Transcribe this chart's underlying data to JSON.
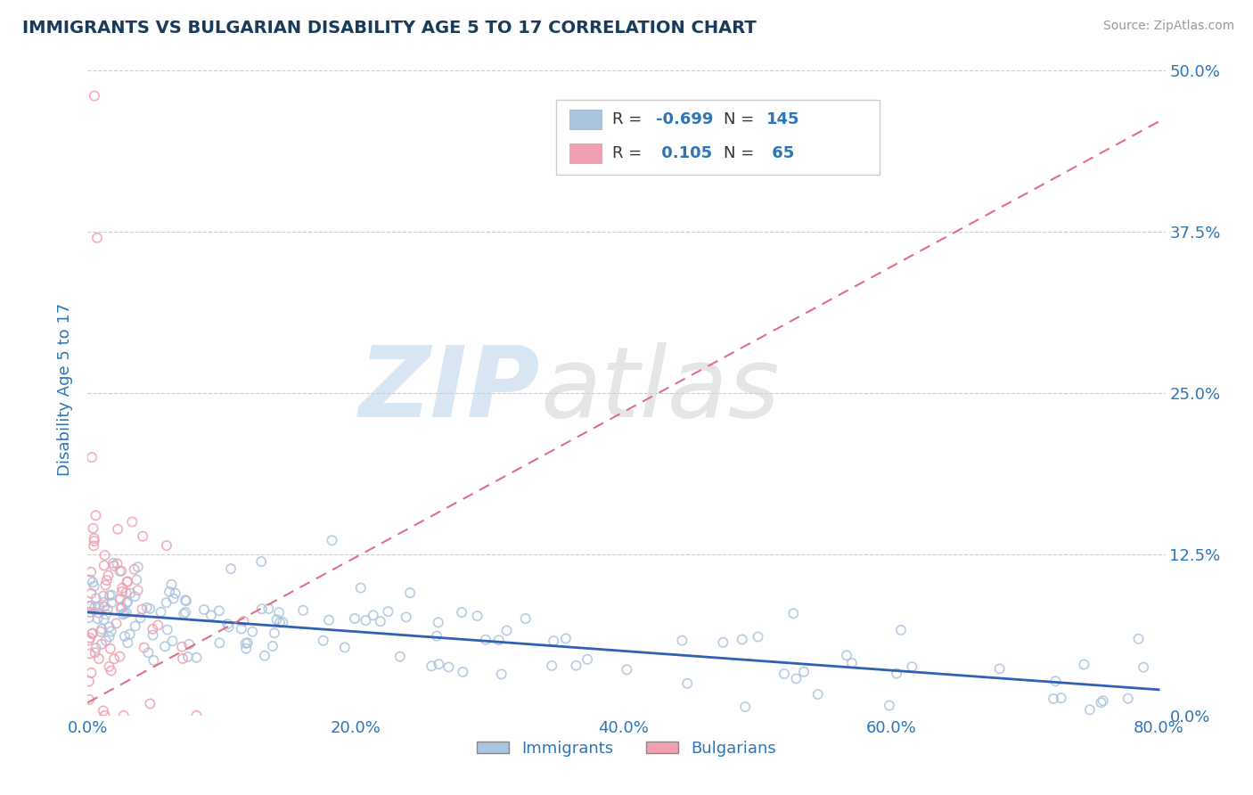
{
  "title": "IMMIGRANTS VS BULGARIAN DISABILITY AGE 5 TO 17 CORRELATION CHART",
  "source_text": "Source: ZipAtlas.com",
  "ylabel": "Disability Age 5 to 17",
  "legend_label1": "Immigrants",
  "legend_label2": "Bulgarians",
  "R1": -0.699,
  "N1": 145,
  "R2": 0.105,
  "N2": 65,
  "xlim": [
    0.0,
    0.8
  ],
  "ylim": [
    0.0,
    0.5
  ],
  "yticks": [
    0.0,
    0.125,
    0.25,
    0.375,
    0.5
  ],
  "ytick_labels": [
    "0.0%",
    "12.5%",
    "25.0%",
    "37.5%",
    "50.0%"
  ],
  "xticks": [
    0.0,
    0.2,
    0.4,
    0.6,
    0.8
  ],
  "xtick_labels": [
    "0.0%",
    "20.0%",
    "40.0%",
    "60.0%",
    "80.0%"
  ],
  "color_immigrants": "#a8c4e0",
  "color_bulgarians": "#f0a0b0",
  "color_trend_immigrants": "#3060b0",
  "color_trend_bulgarians": "#e07080",
  "title_color": "#1a3a5c",
  "axis_label_color": "#2e75b6",
  "tick_color": "#2e75b6",
  "source_color": "#999999",
  "watermark_zip": "ZIP",
  "watermark_atlas": "atlas",
  "background_color": "#ffffff",
  "grid_color": "#cccccc",
  "grid_style": "--",
  "seed": 42,
  "trend1_x0": 0.0,
  "trend1_y0": 0.08,
  "trend1_x1": 0.8,
  "trend1_y1": 0.02,
  "trend2_x0": 0.0,
  "trend2_y0": 0.01,
  "trend2_x1": 0.8,
  "trend2_y1": 0.46
}
